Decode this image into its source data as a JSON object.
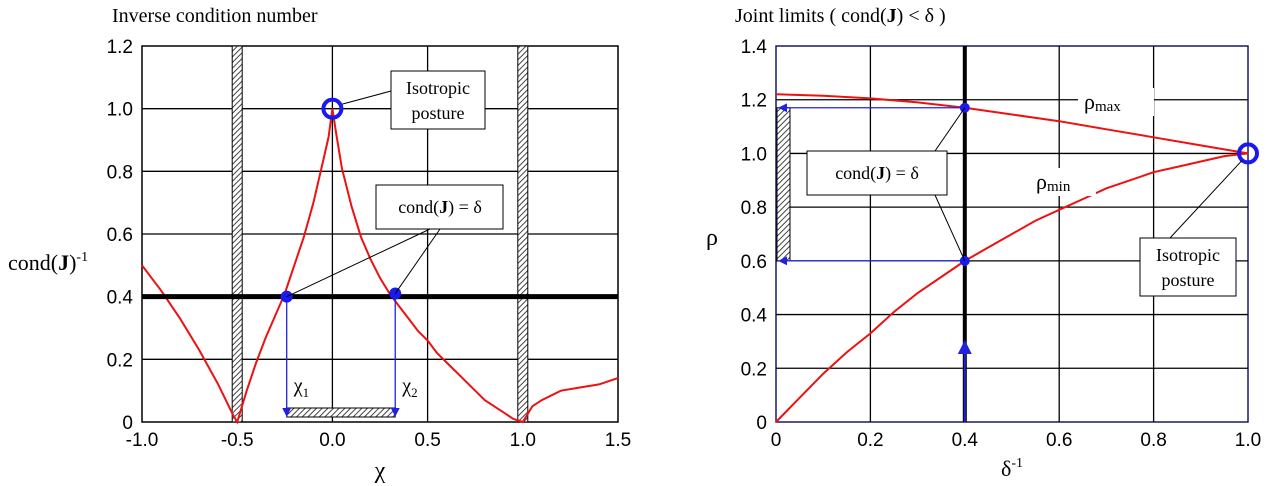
{
  "colors": {
    "curve": "#ee1111",
    "marker": "#1a1aee",
    "guide": "#2222dd",
    "axis_thick": "#000000",
    "hatch": "#555555"
  },
  "chart_data": [
    {
      "type": "line",
      "title": "Inverse condition number",
      "xlabel": "χ",
      "ylabel": "cond(J)",
      "ylabel_sup": "-1",
      "xlim": [
        -1.0,
        1.5
      ],
      "ylim": [
        0,
        1.2
      ],
      "grid": true,
      "xticks": [
        -1.0,
        -0.5,
        0.0,
        0.5,
        1.0,
        1.5
      ],
      "xtick_labels": [
        "-1.0",
        "-0.5",
        "0.0",
        "0.5",
        "1.0",
        "1.5"
      ],
      "yticks": [
        0,
        0.2,
        0.4,
        0.6,
        0.8,
        1.0,
        1.2
      ],
      "ytick_labels": [
        "0",
        "0.2",
        "0.4",
        "0.6",
        "0.8",
        "1.0",
        "1.2"
      ],
      "series": [
        {
          "x": [
            -1.0,
            -0.9,
            -0.8,
            -0.7,
            -0.6,
            -0.52,
            -0.5,
            -0.45,
            -0.4,
            -0.35,
            -0.3,
            -0.25,
            -0.2,
            -0.15,
            -0.1,
            -0.05,
            -0.02,
            0.0,
            0.02,
            0.05,
            0.1,
            0.15,
            0.2,
            0.25,
            0.3,
            0.35,
            0.4,
            0.45,
            0.5,
            0.55,
            0.6,
            0.65,
            0.7,
            0.75,
            0.8,
            0.85,
            0.9,
            0.95,
            1.0,
            1.05,
            1.1,
            1.2,
            1.3,
            1.4,
            1.5
          ],
          "y": [
            0.5,
            0.42,
            0.33,
            0.23,
            0.12,
            0.02,
            0.0,
            0.1,
            0.19,
            0.27,
            0.34,
            0.41,
            0.5,
            0.59,
            0.7,
            0.83,
            0.91,
            1.0,
            0.92,
            0.81,
            0.69,
            0.59,
            0.52,
            0.46,
            0.41,
            0.37,
            0.33,
            0.29,
            0.26,
            0.22,
            0.19,
            0.16,
            0.13,
            0.1,
            0.07,
            0.05,
            0.03,
            0.01,
            0.0,
            0.05,
            0.07,
            0.1,
            0.11,
            0.12,
            0.14
          ]
        }
      ],
      "threshold": {
        "y": 0.4,
        "label": "cond(J) = δ"
      },
      "limits": [
        -0.5,
        1.0
      ],
      "intersections": [
        {
          "x": -0.24,
          "y": 0.4,
          "label": "χ",
          "label_sub": "1"
        },
        {
          "x": 0.33,
          "y": 0.41,
          "label": "χ",
          "label_sub": "2"
        }
      ],
      "interval": [
        -0.24,
        0.33
      ],
      "isotropic": {
        "x": 0.0,
        "y": 1.0,
        "label_line1": "Isotropic",
        "label_line2": "posture"
      }
    },
    {
      "type": "line",
      "title": "Joint limits ( cond(J) < δ )",
      "xlabel": "δ",
      "xlabel_sup": "-1",
      "ylabel": "ρ",
      "xlim": [
        0,
        1.0
      ],
      "ylim": [
        0,
        1.4
      ],
      "grid": true,
      "xticks": [
        0,
        0.2,
        0.4,
        0.6,
        0.8,
        1.0
      ],
      "xtick_labels": [
        "0",
        "0.2",
        "0.4",
        "0.6",
        "0.8",
        "1.0"
      ],
      "yticks": [
        0,
        0.2,
        0.4,
        0.6,
        0.8,
        1.0,
        1.2,
        1.4
      ],
      "ytick_labels": [
        "0",
        "0.2",
        "0.4",
        "0.6",
        "0.8",
        "1.0",
        "1.2",
        "1.4"
      ],
      "series": [
        {
          "name": "ρ",
          "name_sub": "max",
          "x": [
            0,
            0.1,
            0.2,
            0.3,
            0.4,
            0.5,
            0.6,
            0.7,
            0.8,
            0.9,
            1.0
          ],
          "y": [
            1.22,
            1.215,
            1.205,
            1.19,
            1.17,
            1.145,
            1.12,
            1.09,
            1.06,
            1.03,
            1.0
          ]
        },
        {
          "name": "ρ",
          "name_sub": "min",
          "x": [
            0,
            0.05,
            0.1,
            0.15,
            0.2,
            0.25,
            0.3,
            0.35,
            0.4,
            0.45,
            0.5,
            0.55,
            0.6,
            0.65,
            0.7,
            0.75,
            0.8,
            0.85,
            0.9,
            0.95,
            1.0
          ],
          "y": [
            0.0,
            0.09,
            0.18,
            0.26,
            0.33,
            0.41,
            0.48,
            0.54,
            0.6,
            0.65,
            0.7,
            0.75,
            0.79,
            0.83,
            0.87,
            0.9,
            0.93,
            0.95,
            0.97,
            0.99,
            1.0
          ]
        }
      ],
      "guide_x": 0.4,
      "intersections": [
        {
          "x": 0.4,
          "y": 1.17
        },
        {
          "x": 0.4,
          "y": 0.6
        }
      ],
      "range": [
        0.6,
        1.17
      ],
      "box_label": "cond(J) = δ",
      "isotropic": {
        "x": 1.0,
        "y": 1.0,
        "label_line1": "Isotropic",
        "label_line2": "posture"
      }
    }
  ]
}
